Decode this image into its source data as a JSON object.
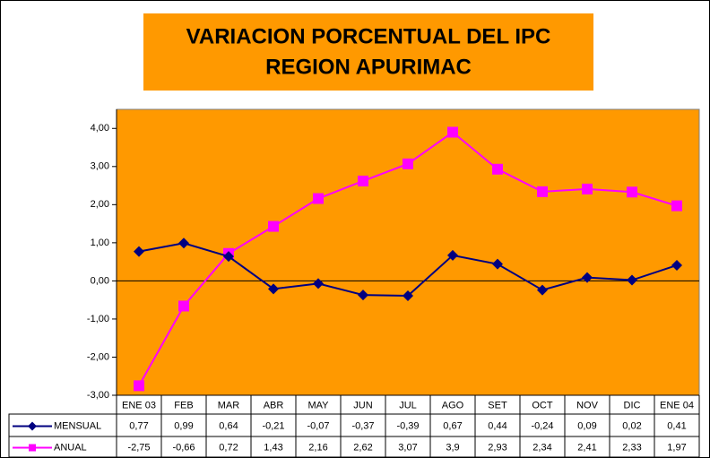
{
  "chart_data": {
    "type": "line",
    "title": "VARIACION  PORCENTUAL DEL IPC",
    "subtitle": "REGION APURIMAC",
    "categories": [
      "ENE 03",
      "FEB",
      "MAR",
      "ABR",
      "MAY",
      "JUN",
      "JUL",
      "AGO",
      "SET",
      "OCT",
      "NOV",
      "DIC",
      "ENE 04"
    ],
    "series": [
      {
        "name": "MENSUAL",
        "color": "#000080",
        "marker": "diamond",
        "values": [
          0.77,
          0.99,
          0.64,
          -0.21,
          -0.07,
          -0.37,
          -0.39,
          0.67,
          0.44,
          -0.24,
          0.09,
          0.02,
          0.41
        ],
        "value_labels": [
          "0,77",
          "0,99",
          "0,64",
          "-0,21",
          "-0,07",
          "-0,37",
          "-0,39",
          "0,67",
          "0,44",
          "-0,24",
          "0,09",
          "0,02",
          "0,41"
        ]
      },
      {
        "name": "ANUAL",
        "color": "#ff00ff",
        "marker": "square",
        "values": [
          -2.75,
          -0.66,
          0.72,
          1.43,
          2.16,
          2.62,
          3.07,
          3.9,
          2.93,
          2.34,
          2.41,
          2.33,
          1.97
        ],
        "value_labels": [
          "-2,75",
          "-0,66",
          "0,72",
          "1,43",
          "2,16",
          "2,62",
          "3,07",
          "3,9",
          "2,93",
          "2,34",
          "2,41",
          "2,33",
          "1,97"
        ]
      }
    ],
    "ylim": [
      -3,
      4.5
    ],
    "yticks": [
      {
        "value": -3,
        "label": "-3,00"
      },
      {
        "value": -2,
        "label": "-2,00"
      },
      {
        "value": -1,
        "label": "-1,00"
      },
      {
        "value": 0,
        "label": "0,00"
      },
      {
        "value": 1,
        "label": "1,00"
      },
      {
        "value": 2,
        "label": "2,00"
      },
      {
        "value": 3,
        "label": "3,00"
      },
      {
        "value": 4,
        "label": "4,00"
      }
    ],
    "background": "#ff9900"
  }
}
